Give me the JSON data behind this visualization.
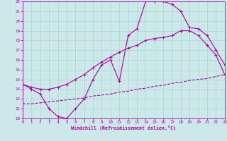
{
  "bg_color": "#cce8e8",
  "grid_color": "#aad4d4",
  "line_color": "#aa00aa",
  "xlabel": "Windchill (Refroidissement éolien,°C)",
  "xmin": 0,
  "xmax": 23,
  "ymin": 10,
  "ymax": 22,
  "line1_x": [
    0,
    1,
    2,
    3,
    4,
    5,
    6,
    7,
    8,
    9,
    10,
    11,
    12,
    13,
    14,
    15,
    16,
    17,
    18,
    19,
    20,
    21,
    22,
    23
  ],
  "line1_y": [
    13.5,
    13.0,
    12.5,
    11.0,
    10.2,
    10.0,
    11.0,
    12.0,
    14.0,
    15.5,
    16.0,
    13.8,
    18.5,
    19.2,
    22.0,
    22.0,
    22.0,
    21.7,
    21.0,
    19.3,
    19.2,
    18.5,
    17.0,
    15.5
  ],
  "line2_x": [
    0,
    1,
    2,
    3,
    4,
    5,
    6,
    7,
    8,
    9,
    10,
    11,
    12,
    13,
    14,
    15,
    16,
    17,
    18,
    19,
    20,
    21,
    22,
    23
  ],
  "line2_y": [
    13.5,
    13.2,
    13.0,
    13.0,
    13.2,
    13.5,
    14.0,
    14.5,
    15.2,
    15.8,
    16.3,
    16.8,
    17.2,
    17.5,
    18.0,
    18.2,
    18.3,
    18.5,
    19.0,
    19.0,
    18.5,
    17.5,
    16.5,
    14.5
  ],
  "line3_x": [
    0,
    1,
    2,
    3,
    4,
    5,
    6,
    7,
    8,
    9,
    10,
    11,
    12,
    13,
    14,
    15,
    16,
    17,
    18,
    19,
    20,
    21,
    22,
    23
  ],
  "line3_y": [
    11.5,
    11.5,
    11.6,
    11.7,
    11.8,
    11.9,
    12.0,
    12.1,
    12.3,
    12.4,
    12.5,
    12.7,
    12.8,
    13.0,
    13.1,
    13.3,
    13.4,
    13.6,
    13.7,
    13.9,
    14.0,
    14.1,
    14.3,
    14.5
  ]
}
